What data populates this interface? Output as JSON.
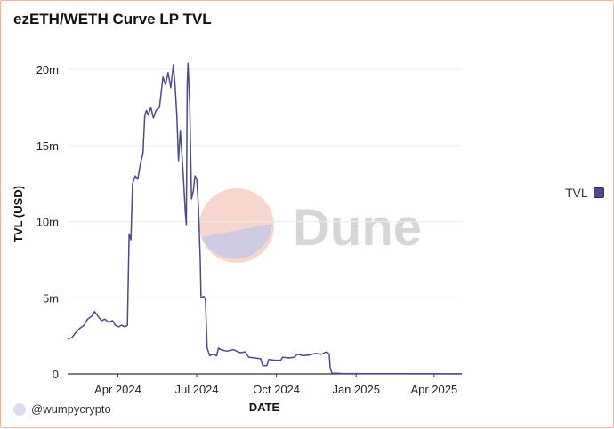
{
  "title": "ezETH/WETH Curve LP TVL",
  "attribution": "@wumpycrypto",
  "watermark": "Dune",
  "legend": {
    "label": "TVL",
    "color": "#4a4a8c"
  },
  "chart_data": {
    "type": "line",
    "title": "ezETH/WETH Curve LP TVL",
    "xlabel": "DATE",
    "ylabel": "TVL (USD)",
    "x_type": "date",
    "xlim": [
      "2024-02-03",
      "2025-05-03"
    ],
    "ylim": [
      0,
      21000000
    ],
    "y_ticks": [
      0,
      5000000,
      10000000,
      15000000,
      20000000
    ],
    "y_tick_labels": [
      "0",
      "5m",
      "10m",
      "15m",
      "20m"
    ],
    "x_ticks": [
      "2024-04-01",
      "2024-07-01",
      "2024-10-01",
      "2025-01-01",
      "2025-04-01"
    ],
    "x_tick_labels": [
      "Apr 2024",
      "Jul 2024",
      "Oct 2024",
      "Jan 2025",
      "Apr 2025"
    ],
    "grid": true,
    "legend_position": "right",
    "series": [
      {
        "name": "TVL",
        "color": "#4a4a8c",
        "points": [
          [
            "2024-02-03",
            2300000
          ],
          [
            "2024-02-08",
            2400000
          ],
          [
            "2024-02-12",
            2700000
          ],
          [
            "2024-02-17",
            3000000
          ],
          [
            "2024-02-22",
            3200000
          ],
          [
            "2024-02-26",
            3600000
          ],
          [
            "2024-03-02",
            3800000
          ],
          [
            "2024-03-05",
            4100000
          ],
          [
            "2024-03-09",
            3800000
          ],
          [
            "2024-03-13",
            3500000
          ],
          [
            "2024-03-17",
            3600000
          ],
          [
            "2024-03-21",
            3400000
          ],
          [
            "2024-03-26",
            3500000
          ],
          [
            "2024-03-29",
            3200000
          ],
          [
            "2024-04-02",
            3100000
          ],
          [
            "2024-04-05",
            3200000
          ],
          [
            "2024-04-09",
            3100000
          ],
          [
            "2024-04-12",
            3200000
          ],
          [
            "2024-04-14",
            9200000
          ],
          [
            "2024-04-16",
            8800000
          ],
          [
            "2024-04-18",
            12500000
          ],
          [
            "2024-04-21",
            13000000
          ],
          [
            "2024-04-24",
            12800000
          ],
          [
            "2024-04-27",
            13800000
          ],
          [
            "2024-04-30",
            14500000
          ],
          [
            "2024-05-02",
            17000000
          ],
          [
            "2024-05-04",
            17300000
          ],
          [
            "2024-05-06",
            17000000
          ],
          [
            "2024-05-09",
            17500000
          ],
          [
            "2024-05-12",
            16800000
          ],
          [
            "2024-05-15",
            17300000
          ],
          [
            "2024-05-19",
            17500000
          ],
          [
            "2024-05-23",
            19500000
          ],
          [
            "2024-05-26",
            19000000
          ],
          [
            "2024-05-29",
            19800000
          ],
          [
            "2024-06-01",
            18800000
          ],
          [
            "2024-06-04",
            20300000
          ],
          [
            "2024-06-06",
            19000000
          ],
          [
            "2024-06-08",
            17000000
          ],
          [
            "2024-06-10",
            14000000
          ],
          [
            "2024-06-12",
            16000000
          ],
          [
            "2024-06-15",
            13500000
          ],
          [
            "2024-06-18",
            10500000
          ],
          [
            "2024-06-19",
            9800000
          ],
          [
            "2024-06-20",
            19000000
          ],
          [
            "2024-06-21",
            20400000
          ],
          [
            "2024-06-23",
            17500000
          ],
          [
            "2024-06-25",
            11500000
          ],
          [
            "2024-06-27",
            12000000
          ],
          [
            "2024-06-29",
            13000000
          ],
          [
            "2024-07-01",
            12800000
          ],
          [
            "2024-07-03",
            11000000
          ],
          [
            "2024-07-05",
            7500000
          ],
          [
            "2024-07-06",
            5000000
          ],
          [
            "2024-07-09",
            5100000
          ],
          [
            "2024-07-11",
            4900000
          ],
          [
            "2024-07-13",
            1700000
          ],
          [
            "2024-07-16",
            1200000
          ],
          [
            "2024-07-20",
            1300000
          ],
          [
            "2024-07-24",
            1200000
          ],
          [
            "2024-07-26",
            1700000
          ],
          [
            "2024-07-29",
            1600000
          ],
          [
            "2024-08-05",
            1500000
          ],
          [
            "2024-08-12",
            1600000
          ],
          [
            "2024-08-20",
            1400000
          ],
          [
            "2024-08-26",
            1450000
          ],
          [
            "2024-08-30",
            1100000
          ],
          [
            "2024-09-06",
            1050000
          ],
          [
            "2024-09-13",
            1000000
          ],
          [
            "2024-09-15",
            550000
          ],
          [
            "2024-09-20",
            550000
          ],
          [
            "2024-09-22",
            950000
          ],
          [
            "2024-09-29",
            900000
          ],
          [
            "2024-10-06",
            900000
          ],
          [
            "2024-10-08",
            1100000
          ],
          [
            "2024-10-15",
            1050000
          ],
          [
            "2024-10-22",
            1100000
          ],
          [
            "2024-10-25",
            1300000
          ],
          [
            "2024-11-01",
            1200000
          ],
          [
            "2024-11-08",
            1250000
          ],
          [
            "2024-11-15",
            1350000
          ],
          [
            "2024-11-22",
            1300000
          ],
          [
            "2024-11-28",
            1450000
          ],
          [
            "2024-12-01",
            1300000
          ],
          [
            "2024-12-02",
            400000
          ],
          [
            "2024-12-04",
            50000
          ],
          [
            "2024-12-15",
            30000
          ],
          [
            "2025-01-15",
            20000
          ],
          [
            "2025-03-01",
            10000
          ],
          [
            "2025-05-03",
            5000
          ]
        ]
      }
    ]
  }
}
